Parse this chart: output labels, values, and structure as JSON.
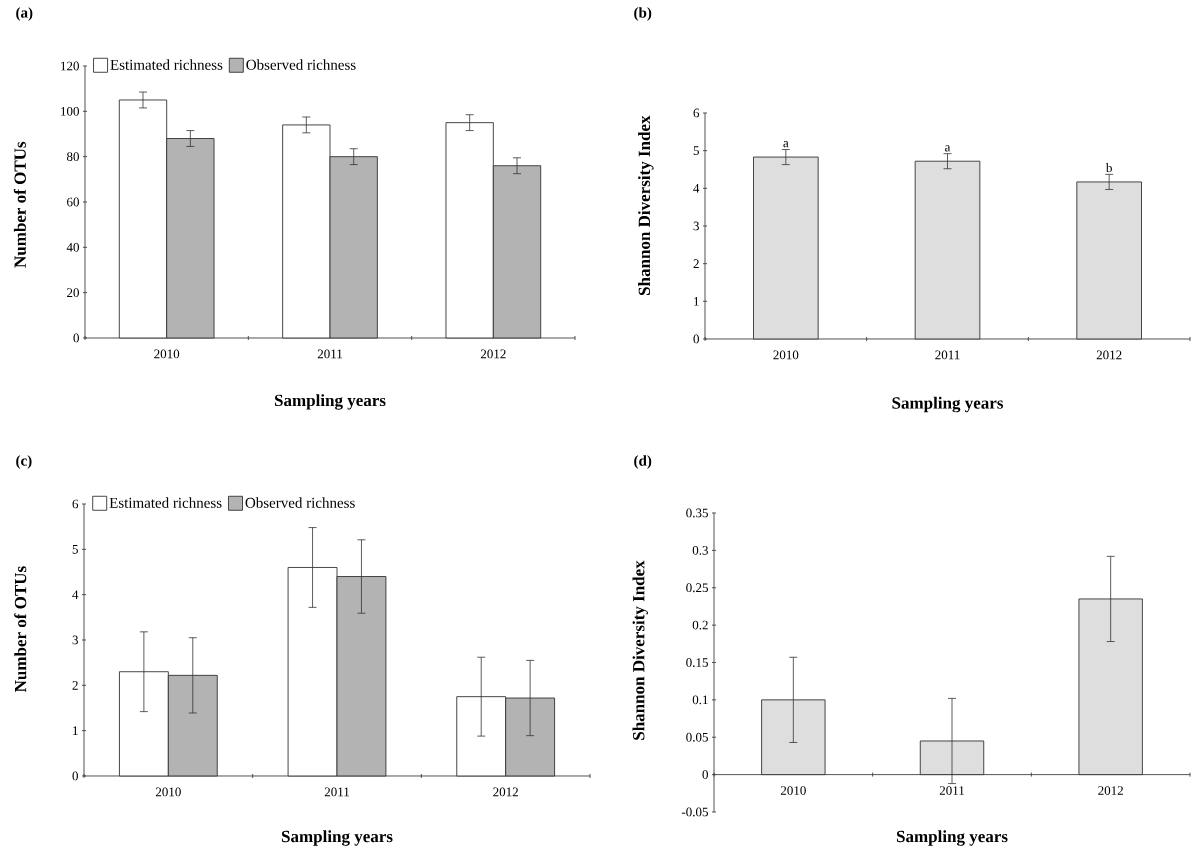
{
  "chart_data": [
    {
      "type": "bar",
      "title": "(a)",
      "xlabel": "Sampling years",
      "ylabel": "Number of OTUs",
      "categories": [
        "2010",
        "2011",
        "2012"
      ],
      "ylim": [
        0,
        120
      ],
      "yticks": [
        0,
        20,
        40,
        60,
        80,
        100,
        120
      ],
      "legend": "top left",
      "series": [
        {
          "name": "Estimated richness",
          "color": "#ffffff",
          "values": [
            105,
            94,
            95
          ],
          "errors": [
            3.5,
            3.5,
            3.5
          ]
        },
        {
          "name": "Observed richness",
          "color": "#b3b3b3",
          "values": [
            88,
            80,
            76
          ],
          "errors": [
            3.5,
            3.5,
            3.5
          ]
        }
      ]
    },
    {
      "type": "bar",
      "title": "(b)",
      "xlabel": "Sampling years",
      "ylabel": "Shannon Diversity Index",
      "categories": [
        "2010",
        "2011",
        "2012"
      ],
      "ylim": [
        0,
        6
      ],
      "yticks": [
        0,
        1,
        2,
        3,
        4,
        5,
        6
      ],
      "color": "#dedede",
      "values": [
        4.83,
        4.72,
        4.17
      ],
      "errors": [
        0.2,
        0.2,
        0.2
      ],
      "annotations": [
        {
          "text": "a",
          "x": "2010",
          "y": 5.03
        },
        {
          "text": "a",
          "x": "2011",
          "y": 4.92
        },
        {
          "text": "b",
          "x": "2012",
          "y": 4.37
        }
      ]
    },
    {
      "type": "bar",
      "title": "(c)",
      "xlabel": "Sampling years",
      "ylabel": "Number of OTUs",
      "categories": [
        "2010",
        "2011",
        "2012"
      ],
      "ylim": [
        0,
        6
      ],
      "yticks": [
        0,
        1,
        2,
        3,
        4,
        5,
        6
      ],
      "legend": "top left",
      "series": [
        {
          "name": "Estimated richness",
          "color": "#ffffff",
          "values": [
            2.3,
            4.6,
            1.75
          ],
          "errors": [
            0.88,
            0.88,
            0.87
          ]
        },
        {
          "name": "Observed richness",
          "color": "#b3b3b3",
          "values": [
            2.22,
            4.4,
            1.72
          ],
          "errors": [
            0.83,
            0.81,
            0.83
          ]
        }
      ]
    },
    {
      "type": "bar",
      "title": "(d)",
      "xlabel": "Sampling years",
      "ylabel": "Shannon Diversity Index",
      "categories": [
        "2010",
        "2011",
        "2012"
      ],
      "ylim": [
        -0.05,
        0.35
      ],
      "yticks": [
        -0.05,
        0,
        0.05,
        0.1,
        0.15,
        0.2,
        0.25,
        0.3,
        0.35
      ],
      "color": "#dedede",
      "values": [
        0.1,
        0.045,
        0.235
      ],
      "errors": [
        0.057,
        0.057,
        0.057
      ]
    }
  ]
}
